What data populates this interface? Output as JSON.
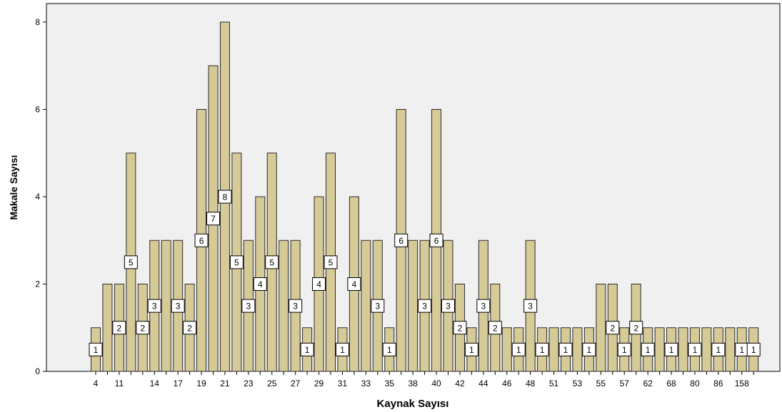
{
  "chart_data": {
    "type": "bar",
    "xlabel": "Kaynak Sayısı",
    "ylabel": "Makale Sayısı",
    "ylim": [
      0,
      8
    ],
    "yticks": [
      0,
      2,
      4,
      6,
      8
    ],
    "grid": false,
    "legend": "none",
    "categories": [
      "4",
      "",
      "11",
      "",
      "",
      "14",
      "",
      "17",
      "",
      "19",
      "",
      "21",
      "",
      "23",
      "",
      "25",
      "",
      "27",
      "",
      "29",
      "",
      "31",
      "",
      "33",
      "",
      "35",
      "",
      "38",
      "",
      "40",
      "",
      "42",
      "",
      "44",
      "",
      "46",
      "",
      "48",
      "",
      "51",
      "",
      "53",
      "",
      "55",
      "",
      "57",
      "",
      "62",
      "",
      "68",
      "",
      "80",
      "",
      "86",
      "",
      "158",
      ""
    ],
    "values": [
      1,
      2,
      2,
      5,
      2,
      3,
      3,
      3,
      2,
      6,
      7,
      8,
      5,
      3,
      4,
      5,
      3,
      3,
      1,
      4,
      5,
      1,
      4,
      3,
      3,
      1,
      6,
      3,
      3,
      6,
      3,
      2,
      1,
      3,
      2,
      1,
      1,
      3,
      1,
      1,
      1,
      1,
      1,
      2,
      2,
      1,
      2,
      1,
      1,
      1,
      1,
      1,
      1,
      1,
      1,
      1,
      1
    ],
    "data_labels": [
      1,
      null,
      2,
      5,
      2,
      3,
      null,
      3,
      2,
      6,
      7,
      8,
      5,
      3,
      4,
      5,
      null,
      3,
      1,
      4,
      5,
      1,
      4,
      null,
      3,
      1,
      6,
      null,
      3,
      6,
      3,
      2,
      1,
      3,
      2,
      null,
      1,
      3,
      1,
      null,
      1,
      null,
      1,
      null,
      2,
      1,
      2,
      1,
      null,
      1,
      null,
      1,
      null,
      1,
      null,
      1,
      1
    ],
    "colors": {
      "bar_fill": "#d6ca97",
      "bar_stroke": "#2a2a2a",
      "plot_bg": "#f0f0f0",
      "label_bg": "#ffffff"
    }
  }
}
